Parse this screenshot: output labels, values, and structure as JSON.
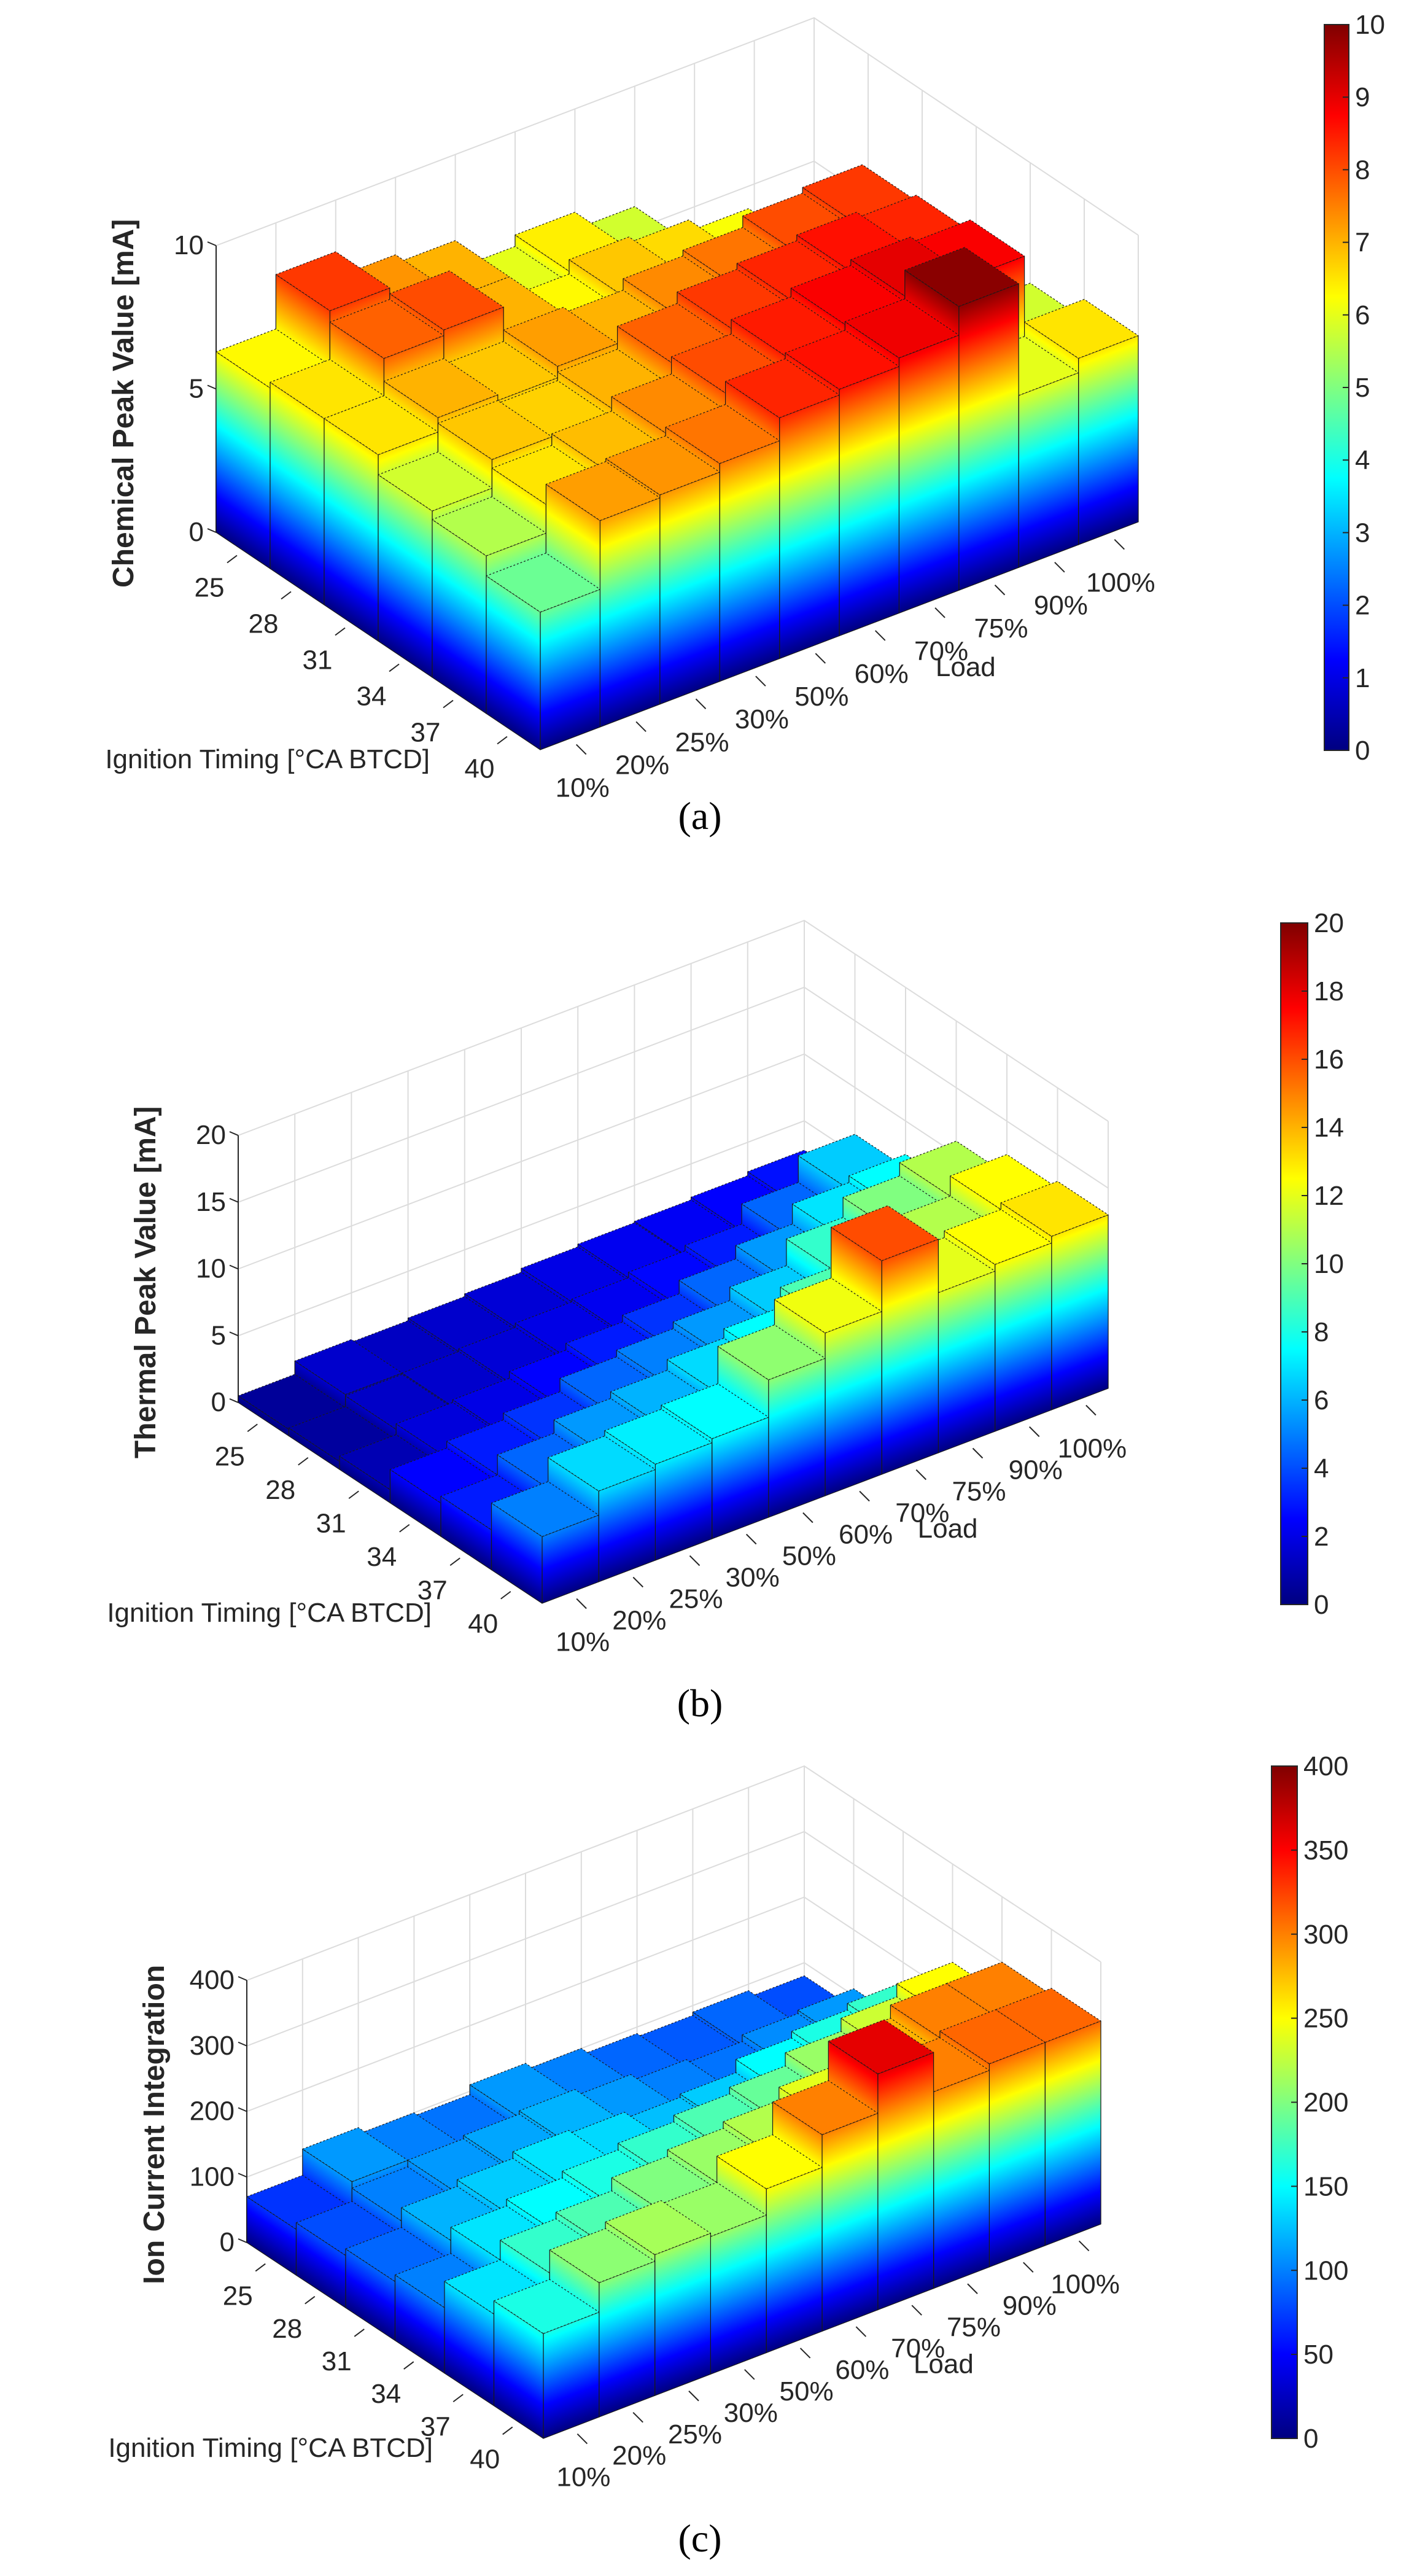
{
  "chart_data": [
    {
      "type": "bar3d",
      "caption": "(a)",
      "zlabel": "Chemical Peak Value [mA]",
      "ylabel": "Ignition Timing [°CA BTCD]",
      "xlabel": "Load",
      "loads": [
        "10%",
        "20%",
        "25%",
        "30%",
        "50%",
        "60%",
        "70%",
        "75%",
        "90%",
        "100%"
      ],
      "ignition": [
        "25",
        "28",
        "31",
        "34",
        "37",
        "40"
      ],
      "zlim": [
        0,
        10
      ],
      "zticks": [
        "0",
        "5",
        "10"
      ],
      "colorbar": {
        "limits": [
          0,
          10
        ],
        "ticks": [
          "0",
          "1",
          "2",
          "3",
          "4",
          "5",
          "6",
          "7",
          "8",
          "9",
          "10"
        ]
      },
      "values": [
        [
          6.3,
          8.2,
          7.3,
          7.0,
          6.0,
          6.4,
          5.8,
          4.2,
          3.6,
          3.4
        ],
        [
          6.5,
          7.8,
          8.0,
          7.0,
          6.3,
          6.8,
          6.6,
          6.2,
          4.0,
          4.5
        ],
        [
          6.5,
          7.0,
          6.8,
          7.2,
          7.0,
          7.4,
          7.6,
          8.0,
          8.2,
          5.6
        ],
        [
          5.8,
          6.8,
          6.7,
          7.0,
          7.8,
          8.2,
          8.4,
          8.6,
          8.4,
          5.6
        ],
        [
          5.5,
          6.5,
          6.9,
          7.4,
          8.0,
          8.5,
          8.8,
          9.0,
          8.8,
          5.8
        ],
        [
          4.8,
          7.2,
          7.3,
          7.6,
          8.4,
          8.6,
          8.9,
          9.9,
          6.0,
          6.5
        ]
      ]
    },
    {
      "type": "bar3d",
      "caption": "(b)",
      "zlabel": "Thermal Peak Value [mA]",
      "ylabel": "Ignition Timing [°CA BTCD]",
      "xlabel": "Load",
      "loads": [
        "10%",
        "20%",
        "25%",
        "30%",
        "50%",
        "60%",
        "70%",
        "75%",
        "90%",
        "100%"
      ],
      "ignition": [
        "25",
        "28",
        "31",
        "34",
        "37",
        "40"
      ],
      "zlim": [
        0,
        20
      ],
      "zticks": [
        "0",
        "5",
        "10",
        "15",
        "20"
      ],
      "colorbar": {
        "limits": [
          0,
          20
        ],
        "ticks": [
          "0",
          "2",
          "4",
          "6",
          "8",
          "10",
          "12",
          "14",
          "16",
          "18",
          "20"
        ]
      },
      "values": [
        [
          0.5,
          1.5,
          1.3,
          1.5,
          1.7,
          2.0,
          2.2,
          2.3,
          2.5,
          2.8
        ],
        [
          0.6,
          1.4,
          1.5,
          1.7,
          2.0,
          2.2,
          2.6,
          3.0,
          4.5,
          6.5
        ],
        [
          1.0,
          1.8,
          2.0,
          2.5,
          3.0,
          3.5,
          4.5,
          5.5,
          7.0,
          7.5
        ],
        [
          2.5,
          3.0,
          3.5,
          4.5,
          5.0,
          5.5,
          6.5,
          8.5,
          10.0,
          11.0
        ],
        [
          3.0,
          4.5,
          5.5,
          6.0,
          6.8,
          7.5,
          9.0,
          10.0,
          11.0,
          12.5
        ],
        [
          5.0,
          6.8,
          7.2,
          7.5,
          10.3,
          12.2,
          16.0,
          12.0,
          12.5,
          13.0
        ]
      ]
    },
    {
      "type": "bar3d",
      "caption": "(c)",
      "zlabel": "Ion Current Integration",
      "ylabel": "Ignition Timing [°CA BTCD]",
      "xlabel": "Load",
      "loads": [
        "10%",
        "20%",
        "25%",
        "30%",
        "50%",
        "60%",
        "70%",
        "75%",
        "90%",
        "100%"
      ],
      "ignition": [
        "25",
        "28",
        "31",
        "34",
        "37",
        "40"
      ],
      "zlim": [
        0,
        400
      ],
      "zticks": [
        "0",
        "100",
        "200",
        "300",
        "400"
      ],
      "colorbar": {
        "limits": [
          0,
          400
        ],
        "ticks": [
          "0",
          "50",
          "100",
          "150",
          "200",
          "250",
          "300",
          "350",
          "400"
        ]
      },
      "values": [
        [
          70,
          110,
          100,
          95,
          110,
          100,
          90,
          85,
          90,
          80
        ],
        [
          80,
          100,
          110,
          115,
          120,
          110,
          100,
          95,
          105,
          110
        ],
        [
          90,
          120,
          130,
          140,
          135,
          125,
          130,
          150,
          160,
          170
        ],
        [
          100,
          140,
          150,
          160,
          170,
          180,
          190,
          210,
          230,
          250
        ],
        [
          140,
          170,
          180,
          200,
          210,
          220,
          240,
          280,
          300,
          300
        ],
        [
          160,
          205,
          215,
          210,
          250,
          300,
          360,
          300,
          310,
          310
        ]
      ]
    }
  ]
}
